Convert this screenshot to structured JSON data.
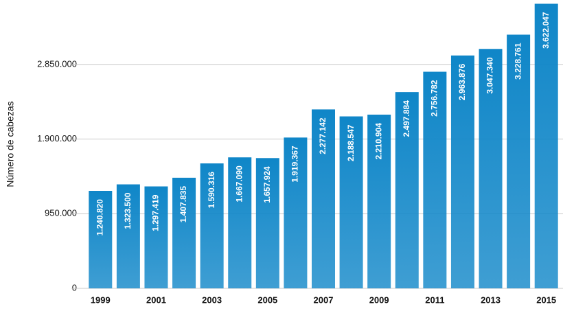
{
  "chart_data": {
    "type": "bar",
    "y_label": "Número de cabezas",
    "categories": [
      "1999",
      null,
      "2001",
      null,
      "2003",
      null,
      "2005",
      null,
      "2007",
      null,
      "2009",
      null,
      "2011",
      null,
      "2013",
      null,
      "2015"
    ],
    "values": [
      1240820,
      1323500,
      1297419,
      1407835,
      1590316,
      1667090,
      1657924,
      1919367,
      2277142,
      2188547,
      2210904,
      2497884,
      2756782,
      2963876,
      3047340,
      3228761,
      3622047
    ],
    "value_labels": [
      "1.240.820",
      "1.323.500",
      "1.297.419",
      "1.407.835",
      "1.590.316",
      "1.667.090",
      "1.657.924",
      "1.919.367",
      "2.277.142",
      "2.188.547",
      "2.210.904",
      "2.497.884",
      "2.756.782",
      "2.963.876",
      "3.047.340",
      "3.228.761",
      "3.622.047"
    ],
    "color": "#0f86c8",
    "ylim": [
      0,
      3670000
    ],
    "yticks": [
      0,
      {
        "value": 950000,
        "label": "950.000"
      },
      {
        "value": 1900000,
        "label": "1.900.000"
      },
      {
        "value": 2850000,
        "label": "2.850.000"
      }
    ],
    "grid": true
  }
}
